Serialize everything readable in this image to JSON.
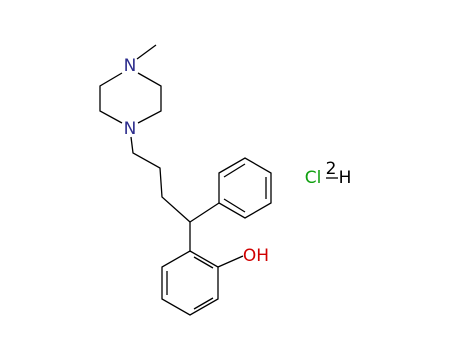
{
  "atoms": {
    "piperazine_n_top": "N",
    "piperazine_n_bottom": "N",
    "hydroxyl": "OH",
    "chlorine": "Cl",
    "count": "2",
    "hydrogen": "H"
  }
}
